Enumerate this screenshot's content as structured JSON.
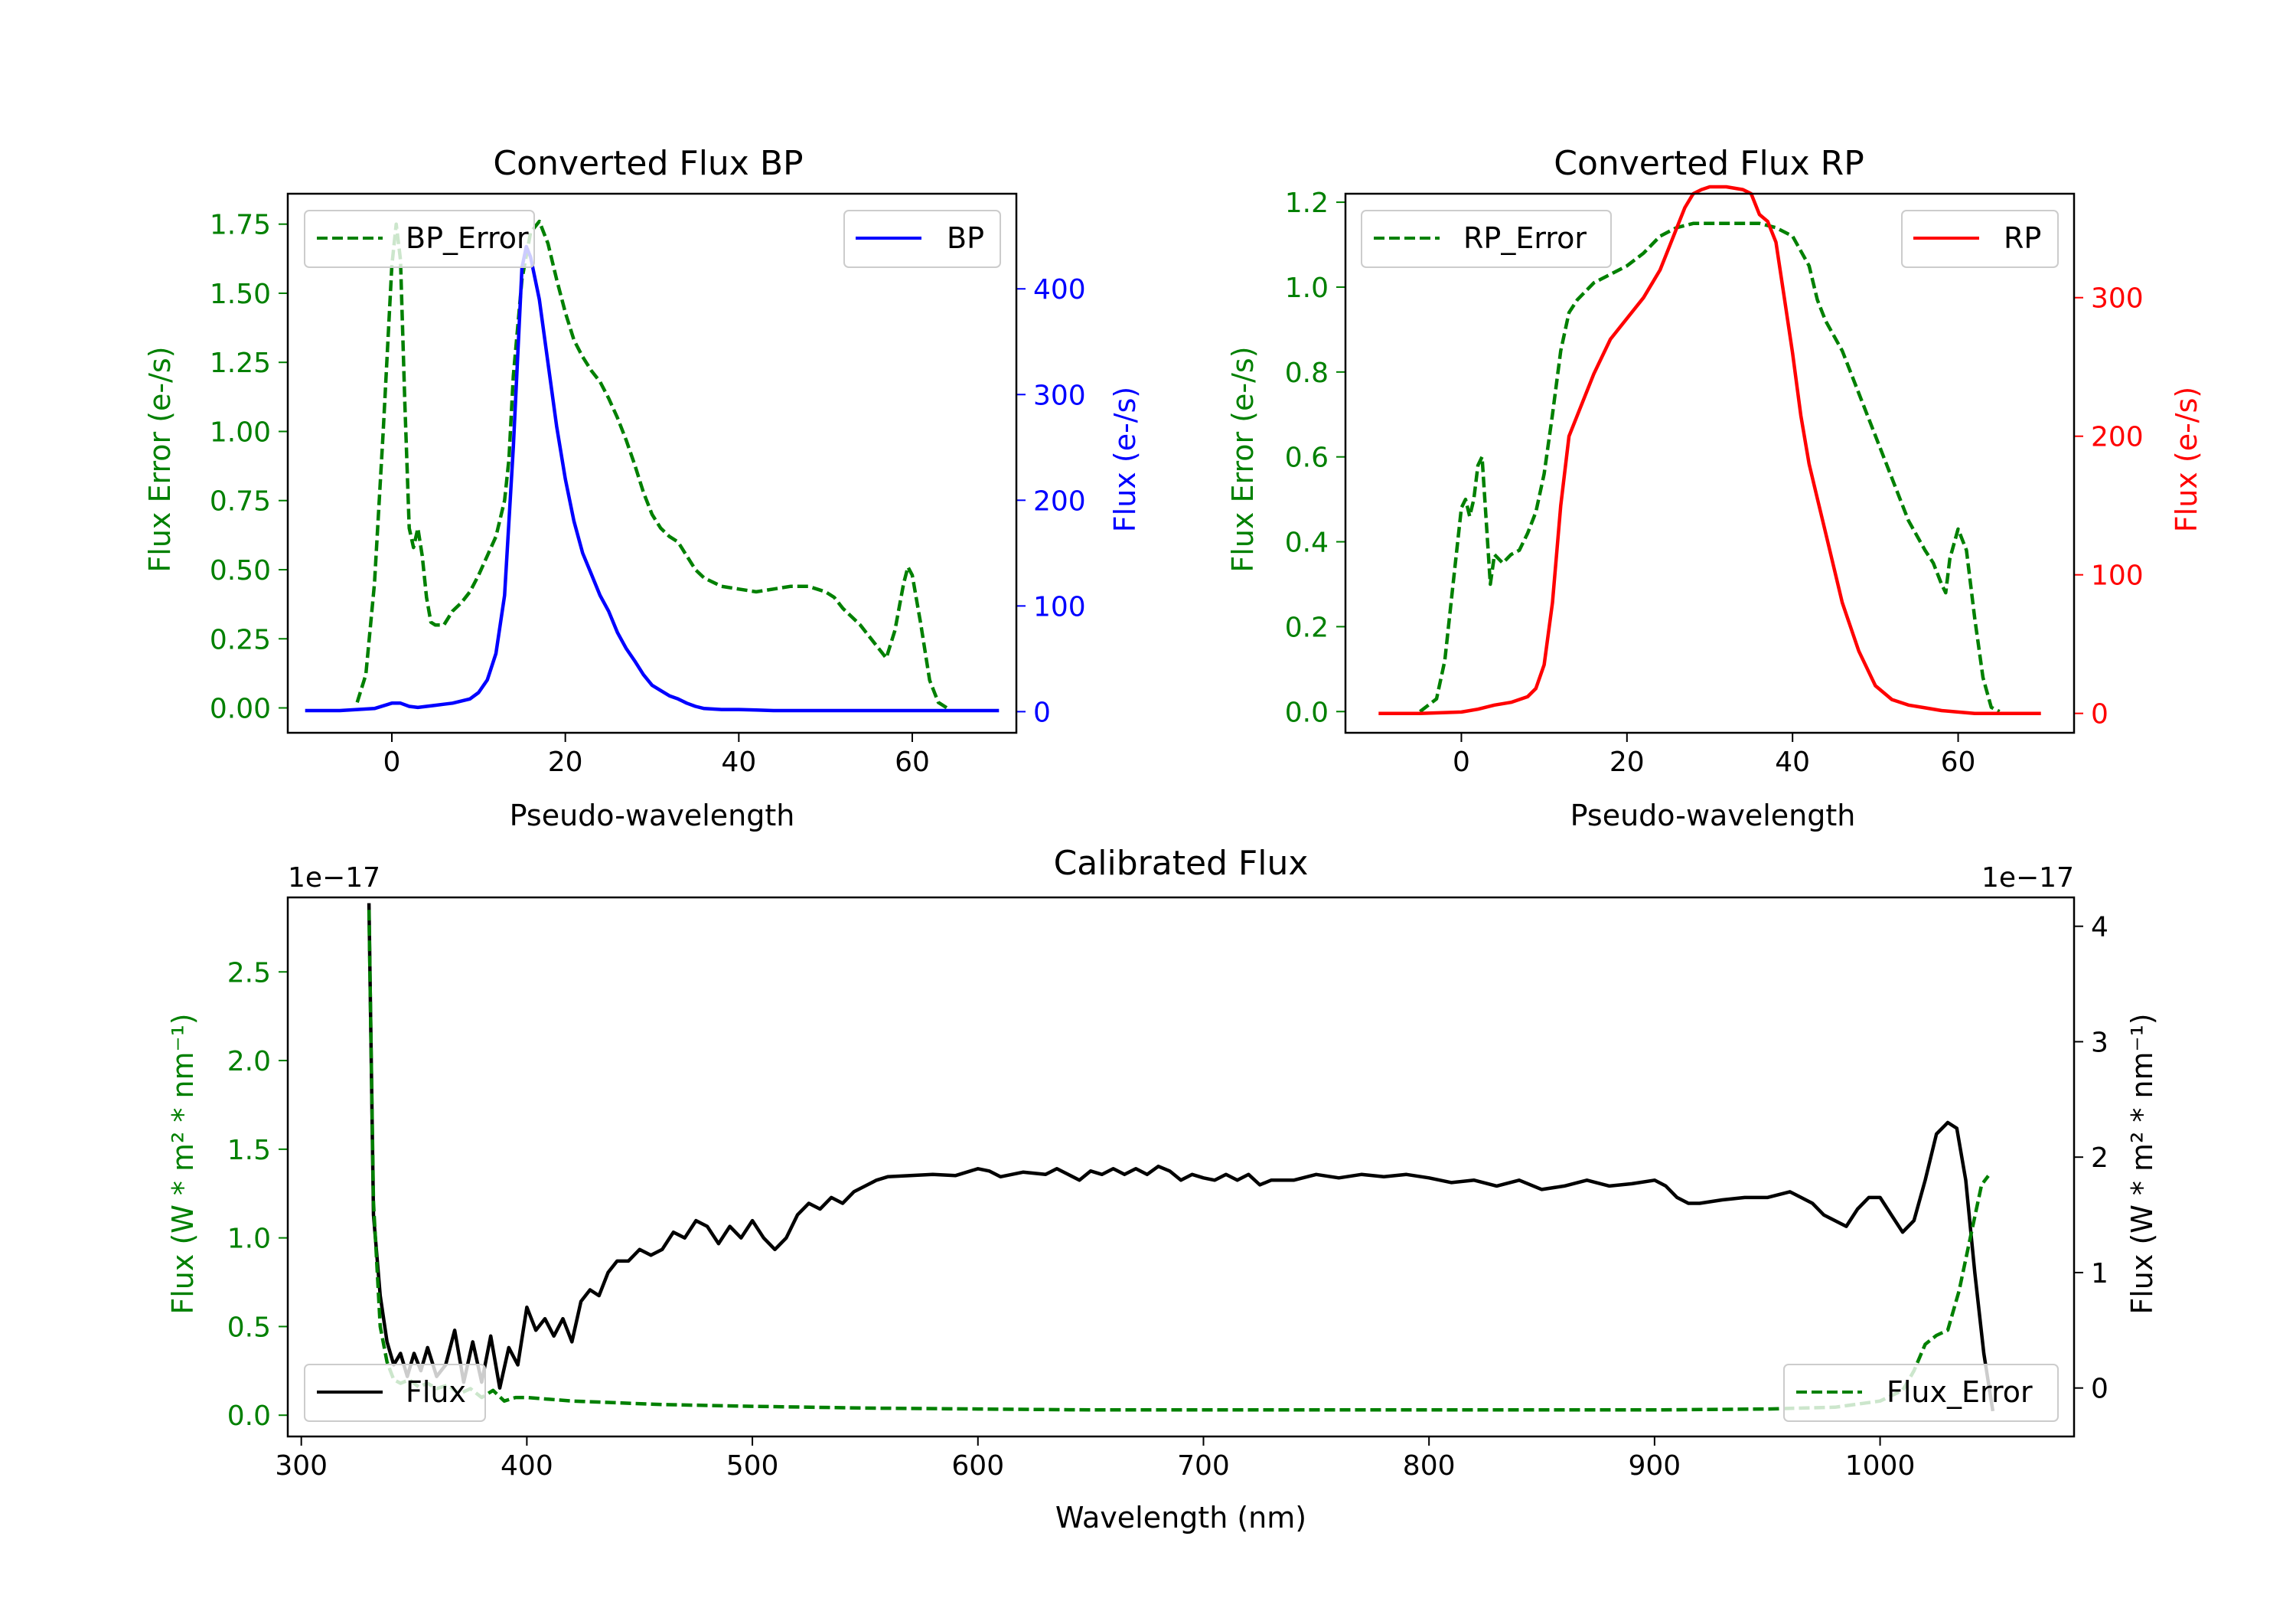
{
  "chart_data": [
    {
      "type": "line",
      "title": "Converted Flux BP",
      "xlabel": "Pseudo-wavelength",
      "ylabel_left": "Flux Error (e-/s)",
      "ylabel_right": "Flux (e-/s)",
      "xlim": [
        -12,
        72
      ],
      "ylim_left": [
        -0.09,
        1.86
      ],
      "ylim_right": [
        -20,
        490
      ],
      "xticks": [
        "0",
        "20",
        "40",
        "60"
      ],
      "xtick_values": [
        0,
        20,
        40,
        60
      ],
      "yticks_left": [
        "0.00",
        "0.25",
        "0.50",
        "0.75",
        "1.00",
        "1.25",
        "1.50",
        "1.75"
      ],
      "ytick_values_left": [
        0,
        0.25,
        0.5,
        0.75,
        1.0,
        1.25,
        1.5,
        1.75
      ],
      "yticks_right": [
        "0",
        "100",
        "200",
        "300",
        "400"
      ],
      "ytick_values_right": [
        0,
        100,
        200,
        300,
        400
      ],
      "colors": {
        "error": "#008000",
        "flux": "#0000ff"
      },
      "series": [
        {
          "name": "BP_Error",
          "axis": "left",
          "style": "dashed",
          "color": "#008000",
          "legend": "top-left",
          "x": [
            -4,
            -3,
            -2,
            -1,
            0,
            0.5,
            1,
            1.5,
            2,
            2.5,
            3,
            3.5,
            4,
            4.5,
            5,
            6,
            7,
            8,
            9,
            10,
            11,
            12,
            13,
            13.5,
            14,
            15,
            16,
            17,
            18,
            19,
            20,
            21,
            22,
            23,
            24,
            25,
            26,
            27,
            28,
            29,
            30,
            31,
            32,
            33,
            34,
            35,
            36,
            38,
            40,
            42,
            44,
            46,
            48,
            50,
            51,
            52,
            54,
            56,
            57,
            58,
            59,
            59.5,
            60,
            61,
            62,
            63,
            64
          ],
          "y": [
            0.02,
            0.12,
            0.45,
            1.0,
            1.6,
            1.75,
            1.62,
            1.1,
            0.65,
            0.58,
            0.65,
            0.55,
            0.4,
            0.31,
            0.3,
            0.3,
            0.35,
            0.38,
            0.42,
            0.48,
            0.55,
            0.62,
            0.75,
            0.9,
            1.2,
            1.55,
            1.72,
            1.76,
            1.68,
            1.55,
            1.43,
            1.33,
            1.27,
            1.22,
            1.18,
            1.12,
            1.05,
            0.97,
            0.88,
            0.78,
            0.7,
            0.65,
            0.62,
            0.6,
            0.55,
            0.5,
            0.47,
            0.44,
            0.43,
            0.42,
            0.43,
            0.44,
            0.44,
            0.42,
            0.4,
            0.36,
            0.3,
            0.22,
            0.18,
            0.28,
            0.45,
            0.51,
            0.48,
            0.3,
            0.1,
            0.02,
            0.0
          ]
        },
        {
          "name": "BP",
          "axis": "right",
          "style": "solid",
          "color": "#0000ff",
          "legend": "top-right",
          "x": [
            -10,
            -8,
            -6,
            -4,
            -2,
            0,
            1,
            2,
            3,
            4,
            5,
            6,
            7,
            8,
            9,
            10,
            11,
            12,
            13,
            14,
            15,
            15.5,
            16,
            17,
            18,
            19,
            20,
            21,
            22,
            23,
            24,
            25,
            26,
            27,
            28,
            29,
            30,
            31,
            32,
            33,
            34,
            35,
            36,
            38,
            40,
            42,
            44,
            46,
            48,
            50,
            55,
            60,
            65,
            70
          ],
          "y": [
            1,
            1,
            1,
            2,
            3,
            8,
            8,
            5,
            4,
            5,
            6,
            7,
            8,
            10,
            12,
            18,
            30,
            55,
            110,
            250,
            420,
            440,
            430,
            390,
            330,
            270,
            220,
            180,
            150,
            130,
            110,
            95,
            75,
            60,
            48,
            35,
            25,
            20,
            15,
            12,
            8,
            5,
            3,
            2,
            2,
            1.5,
            1,
            1,
            1,
            1,
            1,
            1,
            1,
            1
          ]
        }
      ]
    },
    {
      "type": "line",
      "title": "Converted Flux RP",
      "xlabel": "Pseudo-wavelength",
      "ylabel_left": "Flux Error (e-/s)",
      "ylabel_right": "Flux (e-/s)",
      "xlim": [
        -14,
        74
      ],
      "ylim_left": [
        -0.05,
        1.22
      ],
      "ylim_right": [
        -14,
        375
      ],
      "xticks": [
        "0",
        "20",
        "40",
        "60"
      ],
      "xtick_values": [
        0,
        20,
        40,
        60
      ],
      "yticks_left": [
        "0.0",
        "0.2",
        "0.4",
        "0.6",
        "0.8",
        "1.0",
        "1.2"
      ],
      "ytick_values_left": [
        0,
        0.2,
        0.4,
        0.6,
        0.8,
        1.0,
        1.2
      ],
      "yticks_right": [
        "0",
        "100",
        "200",
        "300"
      ],
      "ytick_values_right": [
        0,
        100,
        200,
        300
      ],
      "colors": {
        "error": "#008000",
        "flux": "#ff0000"
      },
      "series": [
        {
          "name": "RP_Error",
          "axis": "left",
          "style": "dashed",
          "color": "#008000",
          "legend": "top-left",
          "x": [
            -5,
            -3,
            -2,
            -1,
            0,
            0.5,
            1,
            1.5,
            2,
            2.5,
            3,
            3.5,
            4,
            5,
            6,
            7,
            8,
            9,
            10,
            11,
            12,
            13,
            14,
            16,
            18,
            20,
            22,
            24,
            26,
            28,
            30,
            32,
            34,
            36,
            38,
            40,
            42,
            43,
            44,
            46,
            48,
            50,
            52,
            54,
            56,
            57,
            58,
            58.5,
            59,
            60,
            61,
            62,
            63,
            64,
            65
          ],
          "y": [
            0.0,
            0.03,
            0.12,
            0.3,
            0.48,
            0.5,
            0.46,
            0.5,
            0.58,
            0.6,
            0.45,
            0.3,
            0.37,
            0.35,
            0.37,
            0.38,
            0.42,
            0.47,
            0.56,
            0.7,
            0.85,
            0.94,
            0.97,
            1.01,
            1.03,
            1.05,
            1.08,
            1.12,
            1.14,
            1.15,
            1.15,
            1.15,
            1.15,
            1.15,
            1.14,
            1.12,
            1.05,
            0.97,
            0.92,
            0.85,
            0.75,
            0.65,
            0.55,
            0.45,
            0.38,
            0.35,
            0.3,
            0.28,
            0.36,
            0.43,
            0.38,
            0.22,
            0.08,
            0.01,
            0.0
          ]
        },
        {
          "name": "RP",
          "axis": "right",
          "style": "solid",
          "color": "#ff0000",
          "legend": "top-right",
          "x": [
            -10,
            -5,
            0,
            2,
            4,
            6,
            8,
            9,
            10,
            11,
            12,
            13,
            14,
            16,
            18,
            20,
            22,
            24,
            25,
            26,
            27,
            28,
            29,
            30,
            32,
            34,
            35,
            36,
            37,
            38,
            39,
            40,
            41,
            42,
            43,
            44,
            45,
            46,
            48,
            50,
            52,
            54,
            56,
            58,
            60,
            62,
            65,
            70
          ],
          "y": [
            0,
            0,
            1,
            3,
            6,
            8,
            12,
            18,
            35,
            80,
            150,
            200,
            215,
            245,
            270,
            285,
            300,
            320,
            335,
            350,
            365,
            375,
            378,
            380,
            380,
            378,
            375,
            360,
            355,
            340,
            300,
            260,
            215,
            180,
            155,
            130,
            105,
            80,
            45,
            20,
            10,
            6,
            4,
            2,
            1,
            0,
            0,
            0
          ]
        }
      ]
    },
    {
      "type": "line",
      "title": "Calibrated Flux",
      "xlabel": "Wavelength (nm)",
      "ylabel_left": "Flux (W * m² * nm⁻¹)",
      "ylabel_right": "Flux (W * m² * nm⁻¹)",
      "offset_left": "1e−17",
      "offset_right": "1e−17",
      "xlim": [
        294,
        1086
      ],
      "ylim_left": [
        -0.12,
        2.92
      ],
      "ylim_right": [
        -0.42,
        4.25
      ],
      "xticks": [
        "300",
        "400",
        "500",
        "600",
        "700",
        "800",
        "900",
        "1000"
      ],
      "xtick_values": [
        300,
        400,
        500,
        600,
        700,
        800,
        900,
        1000
      ],
      "yticks_left": [
        "0.0",
        "0.5",
        "1.0",
        "1.5",
        "2.0",
        "2.5"
      ],
      "ytick_values_left": [
        0,
        0.5,
        1.0,
        1.5,
        2.0,
        2.5
      ],
      "yticks_right": [
        "0",
        "1",
        "2",
        "3",
        "4"
      ],
      "ytick_values_right": [
        0,
        1,
        2,
        3,
        4
      ],
      "colors": {
        "error": "#008000",
        "flux": "#000000"
      },
      "series": [
        {
          "name": "Flux",
          "axis": "right",
          "style": "solid",
          "color": "#000000",
          "legend": "bottom-left",
          "x": [
            330,
            332,
            335,
            338,
            341,
            344,
            347,
            350,
            353,
            356,
            360,
            364,
            368,
            372,
            376,
            380,
            384,
            388,
            392,
            396,
            400,
            404,
            408,
            412,
            416,
            420,
            424,
            428,
            432,
            436,
            440,
            445,
            450,
            455,
            460,
            465,
            470,
            475,
            480,
            485,
            490,
            495,
            500,
            505,
            510,
            515,
            520,
            525,
            530,
            535,
            540,
            545,
            550,
            555,
            560,
            570,
            580,
            590,
            600,
            605,
            610,
            620,
            630,
            635,
            640,
            645,
            650,
            655,
            660,
            665,
            670,
            675,
            680,
            685,
            690,
            695,
            700,
            705,
            710,
            715,
            720,
            725,
            730,
            740,
            750,
            760,
            770,
            780,
            790,
            800,
            810,
            820,
            830,
            840,
            850,
            860,
            870,
            880,
            890,
            900,
            905,
            910,
            915,
            920,
            930,
            940,
            950,
            960,
            965,
            970,
            975,
            980,
            985,
            990,
            995,
            1000,
            1005,
            1010,
            1015,
            1020,
            1025,
            1030,
            1034,
            1038,
            1042,
            1046,
            1050
          ],
          "y": [
            4.2,
            1.5,
            0.8,
            0.4,
            0.2,
            0.3,
            0.1,
            0.3,
            0.15,
            0.35,
            0.1,
            0.2,
            0.5,
            0.05,
            0.4,
            0.05,
            0.45,
            0.0,
            0.35,
            0.2,
            0.7,
            0.5,
            0.6,
            0.45,
            0.6,
            0.4,
            0.75,
            0.85,
            0.8,
            1.0,
            1.1,
            1.1,
            1.2,
            1.15,
            1.2,
            1.35,
            1.3,
            1.45,
            1.4,
            1.25,
            1.4,
            1.3,
            1.45,
            1.3,
            1.2,
            1.3,
            1.5,
            1.6,
            1.55,
            1.65,
            1.6,
            1.7,
            1.75,
            1.8,
            1.83,
            1.84,
            1.85,
            1.84,
            1.9,
            1.88,
            1.83,
            1.87,
            1.85,
            1.9,
            1.85,
            1.8,
            1.88,
            1.85,
            1.9,
            1.85,
            1.9,
            1.85,
            1.92,
            1.88,
            1.8,
            1.85,
            1.82,
            1.8,
            1.85,
            1.8,
            1.85,
            1.76,
            1.8,
            1.8,
            1.85,
            1.82,
            1.85,
            1.83,
            1.85,
            1.82,
            1.78,
            1.8,
            1.75,
            1.8,
            1.72,
            1.75,
            1.8,
            1.75,
            1.77,
            1.8,
            1.75,
            1.65,
            1.6,
            1.6,
            1.63,
            1.65,
            1.65,
            1.7,
            1.65,
            1.6,
            1.5,
            1.45,
            1.4,
            1.55,
            1.65,
            1.65,
            1.5,
            1.35,
            1.45,
            1.8,
            2.2,
            2.3,
            2.25,
            1.8,
            1.0,
            0.3,
            -0.2
          ]
        },
        {
          "name": "Flux_Error",
          "axis": "left",
          "style": "dashed",
          "color": "#008000",
          "legend": "bottom-right",
          "x": [
            330,
            332,
            335,
            338,
            341,
            344,
            348,
            352,
            356,
            360,
            365,
            370,
            375,
            380,
            385,
            390,
            395,
            400,
            410,
            420,
            440,
            460,
            500,
            550,
            600,
            650,
            700,
            750,
            800,
            850,
            900,
            950,
            980,
            1000,
            1010,
            1015,
            1020,
            1025,
            1030,
            1035,
            1040,
            1045,
            1048
          ],
          "y": [
            2.85,
            1.2,
            0.5,
            0.3,
            0.2,
            0.18,
            0.2,
            0.16,
            0.18,
            0.15,
            0.17,
            0.12,
            0.15,
            0.1,
            0.14,
            0.08,
            0.1,
            0.1,
            0.09,
            0.08,
            0.07,
            0.06,
            0.05,
            0.04,
            0.035,
            0.03,
            0.03,
            0.03,
            0.03,
            0.03,
            0.03,
            0.035,
            0.045,
            0.08,
            0.14,
            0.25,
            0.4,
            0.45,
            0.48,
            0.7,
            1.0,
            1.3,
            1.35
          ]
        }
      ]
    }
  ]
}
